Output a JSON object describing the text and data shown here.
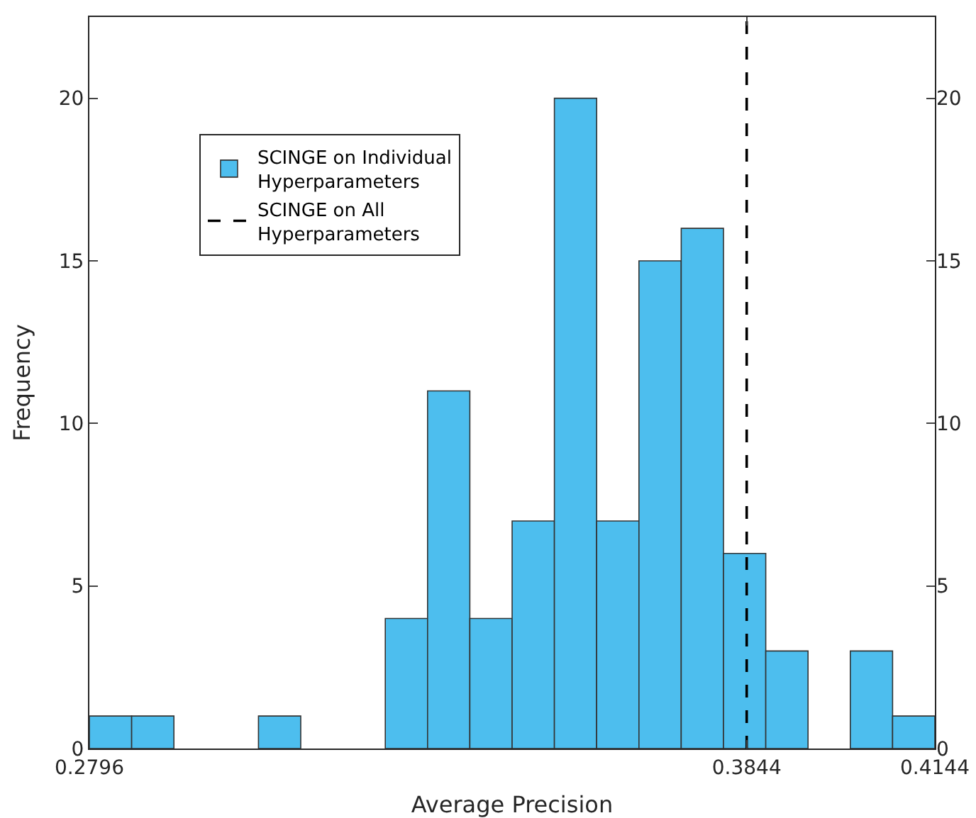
{
  "chart_data": {
    "type": "histogram",
    "xlabel": "Average Precision",
    "ylabel": "Frequency",
    "bins": [
      0.2796,
      0.28634,
      0.29308,
      0.29982,
      0.30656,
      0.3133,
      0.32004,
      0.32678,
      0.33352,
      0.34026,
      0.347,
      0.35374,
      0.36048,
      0.36722,
      0.37396,
      0.3807,
      0.38744,
      0.39418,
      0.40092,
      0.40766,
      0.4144
    ],
    "series": [
      {
        "name": "SCINGE on Individual Hyperparameters",
        "color": "#4dbeee",
        "values": [
          1,
          1,
          0,
          0,
          1,
          0,
          0,
          4,
          11,
          4,
          7,
          20,
          7,
          15,
          16,
          6,
          3,
          0,
          3,
          1
        ]
      }
    ],
    "xlim": [
      0.2796,
      0.4144
    ],
    "xticks": [
      0.2796,
      0.3844,
      0.4144
    ],
    "ylim": [
      0,
      22.5
    ],
    "yticks": [
      0,
      5,
      10,
      15,
      20
    ],
    "y2lim": [
      0,
      22.5
    ],
    "y2ticks": [
      0,
      5,
      10,
      15,
      20
    ],
    "ref_lines": [
      {
        "axis": "x",
        "value": 0.3844,
        "label": "SCINGE on All Hyperparameters",
        "color": "#000000",
        "line_style": "dashed"
      }
    ],
    "legend": "top left",
    "grid": false
  }
}
